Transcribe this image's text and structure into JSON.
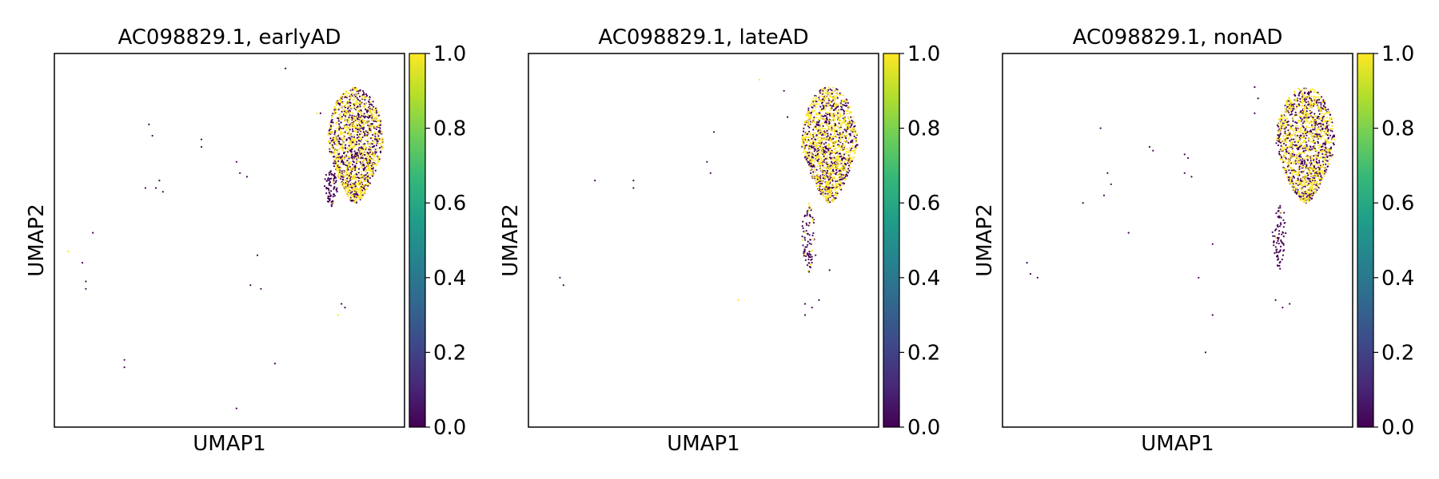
{
  "colorbar_colors": [
    "#440154",
    "#482878",
    "#3e4989",
    "#31688e",
    "#26828e",
    "#1f9e89",
    "#35b779",
    "#6ece58",
    "#b5de2b",
    "#fde725"
  ],
  "chart_data": [
    {
      "type": "scatter",
      "title": "AC098829.1, earlyAD",
      "xlabel": "UMAP1",
      "ylabel": "UMAP2",
      "colorbar": {
        "range": [
          0.0,
          1.0
        ],
        "ticks": [
          "0.0",
          "0.2",
          "0.4",
          "0.6",
          "0.8",
          "1.0"
        ]
      },
      "clusters": [
        {
          "x": [
            0.78,
            0.94
          ],
          "y": [
            0.6,
            0.91
          ],
          "n": 1400,
          "frac_high": 0.5
        },
        {
          "x": [
            0.77,
            0.81
          ],
          "y": [
            0.59,
            0.69
          ],
          "n": 80,
          "frac_high": 0.05
        }
      ],
      "scattered_points": [
        [
          0.66,
          0.96,
          0.0
        ],
        [
          0.75,
          0.84,
          0.9
        ],
        [
          0.76,
          0.84,
          0.0
        ],
        [
          0.27,
          0.81,
          0.0
        ],
        [
          0.28,
          0.78,
          0.0
        ],
        [
          0.42,
          0.77,
          0.0
        ],
        [
          0.42,
          0.75,
          0.0
        ],
        [
          0.26,
          0.64,
          0.0
        ],
        [
          0.29,
          0.64,
          0.0
        ],
        [
          0.3,
          0.66,
          0.0
        ],
        [
          0.31,
          0.63,
          0.0
        ],
        [
          0.52,
          0.71,
          0.0
        ],
        [
          0.53,
          0.68,
          0.0
        ],
        [
          0.55,
          0.67,
          0.0
        ],
        [
          0.11,
          0.52,
          0.0
        ],
        [
          0.04,
          0.47,
          1.0
        ],
        [
          0.08,
          0.44,
          0.0
        ],
        [
          0.09,
          0.39,
          0.0
        ],
        [
          0.09,
          0.37,
          0.0
        ],
        [
          0.58,
          0.46,
          0.0
        ],
        [
          0.56,
          0.38,
          0.0
        ],
        [
          0.59,
          0.37,
          0.0
        ],
        [
          0.82,
          0.33,
          0.0
        ],
        [
          0.83,
          0.32,
          0.0
        ],
        [
          0.81,
          0.3,
          1.0
        ],
        [
          0.2,
          0.18,
          0.0
        ],
        [
          0.2,
          0.16,
          0.0
        ],
        [
          0.63,
          0.17,
          0.0
        ],
        [
          0.52,
          0.05,
          0.0
        ]
      ]
    },
    {
      "type": "scatter",
      "title": "AC098829.1, lateAD",
      "xlabel": "UMAP1",
      "ylabel": "UMAP2",
      "colorbar": {
        "range": [
          0.0,
          1.0
        ],
        "ticks": [
          "0.0",
          "0.2",
          "0.4",
          "0.6",
          "0.8",
          "1.0"
        ]
      },
      "clusters": [
        {
          "x": [
            0.78,
            0.94
          ],
          "y": [
            0.6,
            0.91
          ],
          "n": 1400,
          "frac_high": 0.55
        },
        {
          "x": [
            0.78,
            0.82
          ],
          "y": [
            0.41,
            0.6
          ],
          "n": 90,
          "frac_high": 0.15
        }
      ],
      "scattered_points": [
        [
          0.66,
          0.93,
          1.0
        ],
        [
          0.73,
          0.9,
          0.0
        ],
        [
          0.74,
          0.83,
          0.0
        ],
        [
          0.53,
          0.79,
          0.0
        ],
        [
          0.51,
          0.71,
          0.0
        ],
        [
          0.52,
          0.68,
          0.0
        ],
        [
          0.19,
          0.66,
          0.0
        ],
        [
          0.3,
          0.66,
          0.0
        ],
        [
          0.3,
          0.64,
          0.0
        ],
        [
          0.09,
          0.4,
          0.0
        ],
        [
          0.1,
          0.38,
          0.0
        ],
        [
          0.82,
          0.46,
          0.0
        ],
        [
          0.86,
          0.42,
          0.0
        ],
        [
          0.79,
          0.33,
          0.0
        ],
        [
          0.81,
          0.32,
          0.0
        ],
        [
          0.83,
          0.34,
          0.0
        ],
        [
          0.79,
          0.3,
          0.0
        ],
        [
          0.6,
          0.34,
          1.0
        ]
      ]
    },
    {
      "type": "scatter",
      "title": "AC098829.1, nonAD",
      "xlabel": "UMAP1",
      "ylabel": "UMAP2",
      "colorbar": {
        "range": [
          0.0,
          1.0
        ],
        "ticks": [
          "0.0",
          "0.2",
          "0.4",
          "0.6",
          "0.8",
          "1.0"
        ]
      },
      "clusters": [
        {
          "x": [
            0.78,
            0.95
          ],
          "y": [
            0.6,
            0.91
          ],
          "n": 1400,
          "frac_high": 0.5
        },
        {
          "x": [
            0.77,
            0.81
          ],
          "y": [
            0.42,
            0.6
          ],
          "n": 80,
          "frac_high": 0.05
        }
      ],
      "scattered_points": [
        [
          0.72,
          0.91,
          0.0
        ],
        [
          0.73,
          0.88,
          0.0
        ],
        [
          0.72,
          0.84,
          0.0
        ],
        [
          0.28,
          0.8,
          0.0
        ],
        [
          0.42,
          0.75,
          0.0
        ],
        [
          0.43,
          0.74,
          0.0
        ],
        [
          0.52,
          0.73,
          0.0
        ],
        [
          0.53,
          0.72,
          0.0
        ],
        [
          0.52,
          0.68,
          0.0
        ],
        [
          0.54,
          0.67,
          0.0
        ],
        [
          0.3,
          0.68,
          0.0
        ],
        [
          0.31,
          0.65,
          0.0
        ],
        [
          0.29,
          0.62,
          0.0
        ],
        [
          0.23,
          0.6,
          0.0
        ],
        [
          0.36,
          0.52,
          0.0
        ],
        [
          0.6,
          0.49,
          0.0
        ],
        [
          0.07,
          0.44,
          0.0
        ],
        [
          0.08,
          0.41,
          0.0
        ],
        [
          0.1,
          0.4,
          0.0
        ],
        [
          0.56,
          0.4,
          0.0
        ],
        [
          0.78,
          0.34,
          0.0
        ],
        [
          0.8,
          0.32,
          0.0
        ],
        [
          0.82,
          0.33,
          0.0
        ],
        [
          0.6,
          0.3,
          0.0
        ],
        [
          0.58,
          0.2,
          0.0
        ]
      ]
    }
  ]
}
